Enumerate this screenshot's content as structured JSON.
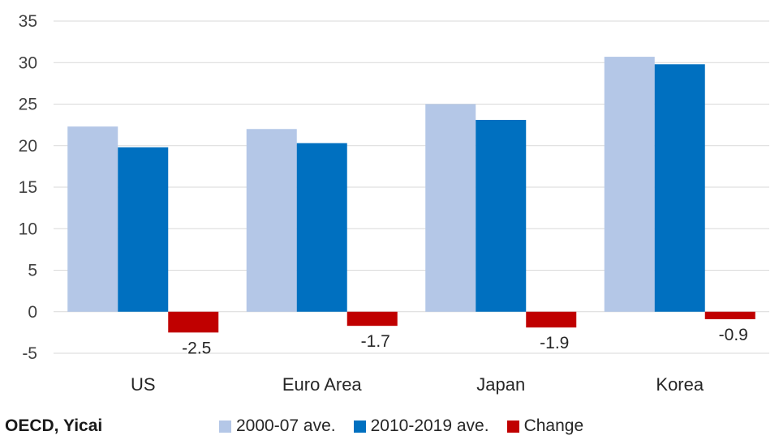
{
  "chart_data": {
    "type": "bar",
    "categories": [
      "US",
      "Euro Area",
      "Japan",
      "Korea"
    ],
    "series": [
      {
        "name": "2000-07 ave.",
        "values": [
          22.3,
          22.0,
          25.0,
          30.7
        ],
        "color": "#B4C7E7"
      },
      {
        "name": "2010-2019 ave.",
        "values": [
          19.8,
          20.3,
          23.1,
          29.8
        ],
        "color": "#0070C0"
      },
      {
        "name": "Change",
        "values": [
          -2.5,
          -1.7,
          -1.9,
          -0.9
        ],
        "color": "#C00000",
        "labels": [
          "-2.5",
          "-1.7",
          "-1.9",
          "-0.9"
        ]
      }
    ],
    "ylim": [
      -5,
      35
    ],
    "yticks": [
      -5,
      0,
      5,
      10,
      15,
      20,
      25,
      30,
      35
    ],
    "grid": true,
    "legend": "bottom"
  },
  "source": "OECD, Yicai"
}
